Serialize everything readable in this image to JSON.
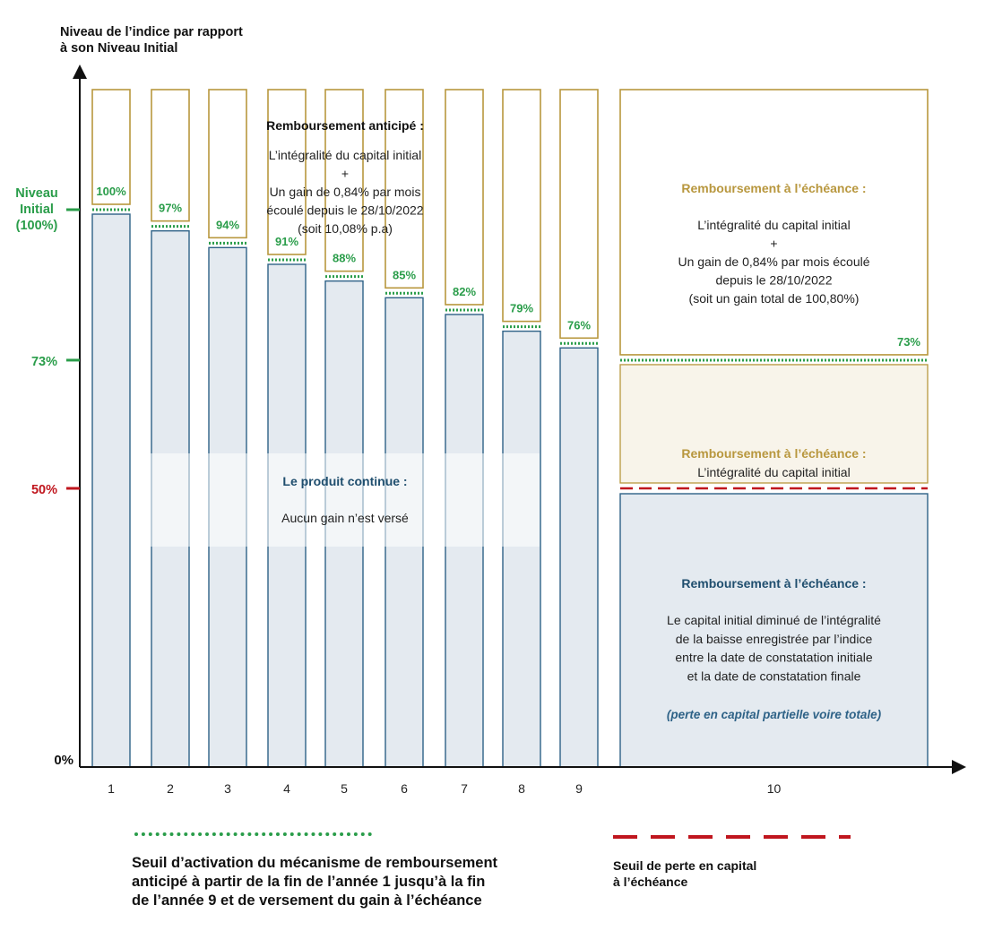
{
  "chart_data": {
    "type": "bar",
    "y_axis_title": [
      "Niveau de l’indice par rapport",
      "à son Niveau Initial"
    ],
    "y_ticks": [
      {
        "value": 100,
        "label": [
          "Niveau",
          "Initial",
          "(100%)"
        ],
        "color": "#2a9d4a"
      },
      {
        "value": 73,
        "label": [
          "73%"
        ],
        "color": "#2a9d4a"
      },
      {
        "value": 50,
        "label": [
          "50%"
        ],
        "color": "#c0161e"
      },
      {
        "value": 0,
        "label": [
          "0%"
        ],
        "color": "#111111"
      }
    ],
    "categories": [
      "1",
      "2",
      "3",
      "4",
      "5",
      "6",
      "7",
      "8",
      "9",
      "10"
    ],
    "thresholds": [
      100,
      97,
      94,
      91,
      88,
      85,
      82,
      79,
      76,
      73
    ],
    "threshold_labels": [
      "100%",
      "97%",
      "94%",
      "91%",
      "88%",
      "85%",
      "82%",
      "79%",
      "76%",
      "73%"
    ],
    "capital_loss_threshold": 50,
    "early_redemption_box": {
      "title": "Remboursement anticipé :",
      "lines": [
        "L’intégralité du capital initial",
        "+",
        "Un gain de 0,84% par mois",
        "écoulé depuis le 28/10/2022",
        "(soit 10,08% p.a)"
      ]
    },
    "continue_box": {
      "title": "Le produit continue :",
      "text": "Aucun gain n’est versé"
    },
    "maturity_gain_box": {
      "title": "Remboursement à l’échéance :",
      "lines": [
        "L’intégralité du capital initial",
        "+",
        "Un gain de 0,84% par mois écoulé",
        "depuis le 28/10/2022",
        "(soit un gain total de 100,80%)"
      ]
    },
    "maturity_capital_box": {
      "title": "Remboursement à l’échéance :",
      "lines": [
        "L’intégralité du capital initial"
      ]
    },
    "maturity_loss_box": {
      "title": "Remboursement à l’échéance :",
      "lines": [
        "Le capital initial diminué de l’intégralité",
        "de la baisse enregistrée par l’indice",
        "entre la date de constatation initiale",
        "et la date de constatation finale"
      ],
      "note": "(perte en capital partielle voire totale)"
    }
  },
  "legend": {
    "early_threshold": [
      "Seuil d’activation du mécanisme de remboursement",
      "anticipé à partir de la fin de l’année 1 jusqu’à la fin",
      "de l’année 9 et de versement du gain à l’échéance"
    ],
    "loss_threshold": [
      "Seuil de perte en capital",
      "à l’échéance"
    ]
  },
  "colors": {
    "green": "#2a9d4a",
    "red": "#c0161e",
    "gold": "#b8973e",
    "navy": "#1f4e6e",
    "bar_fill": "#e4eaf0",
    "bar_stroke": "#2e6287",
    "cream": "#f8f4ea"
  }
}
